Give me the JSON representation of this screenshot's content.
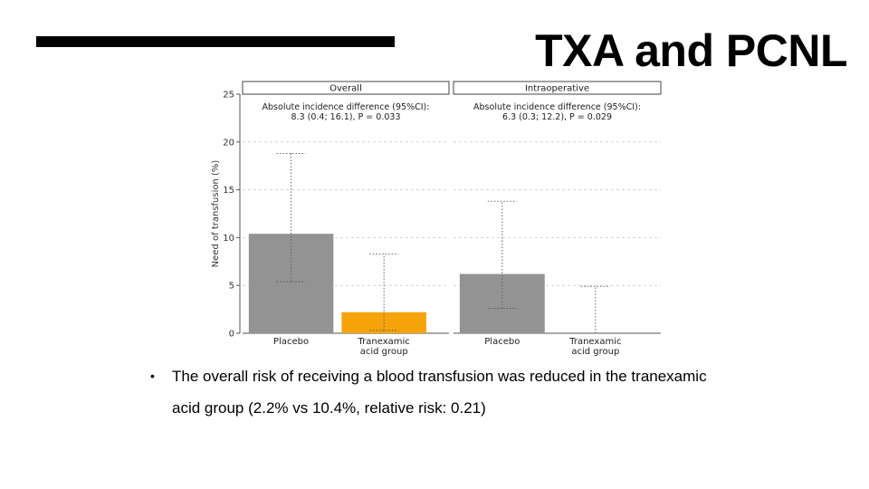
{
  "slide": {
    "title": "TXA and PCNL",
    "bullet_marker": "•",
    "bullet": "The overall risk of receiving a blood transfusion was reduced in the tranexamic acid group (2.2% vs 10.4%, relative risk: 0.21)"
  },
  "colors": {
    "placebo": "#939393",
    "tranexamic": "#F6A40A",
    "title_rule": "#000000"
  },
  "chart_data": {
    "type": "bar",
    "ylabel": "Need of transfusion (%)",
    "ylim": [
      0,
      25
    ],
    "yticks": [
      0,
      5,
      10,
      15,
      20,
      25
    ],
    "grid": true,
    "panels": [
      {
        "title": "Overall",
        "annotation": [
          "Absolute incidence difference (95%CI):",
          "8.3 (0.4; 16.1), P = 0.033"
        ],
        "categories": [
          "Placebo",
          "Tranexamic acid group"
        ],
        "values": [
          10.4,
          2.2
        ],
        "ci": [
          [
            5.4,
            18.8
          ],
          [
            0.3,
            8.3
          ]
        ]
      },
      {
        "title": "Intraoperative",
        "annotation": [
          "Absolute incidence difference (95%CI):",
          "6.3 (0.3; 12.2), P = 0.029"
        ],
        "categories": [
          "Placebo",
          "Tranexamic acid group"
        ],
        "values": [
          6.2,
          0
        ],
        "ci": [
          [
            2.6,
            13.8
          ],
          [
            0,
            4.9
          ]
        ]
      }
    ]
  }
}
